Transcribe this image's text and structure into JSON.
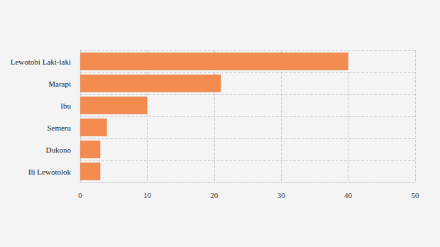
{
  "chart_data": {
    "type": "bar",
    "orientation": "horizontal",
    "categories": [
      "Lewotobi Laki-laki",
      "Marapi",
      "Ibu",
      "Semeru",
      "Dukono",
      "Ili Lewotolok"
    ],
    "values": [
      40,
      21,
      10,
      4,
      3,
      3
    ],
    "color": "#f58c4f",
    "xlim": [
      0,
      50
    ],
    "xticks": [
      0,
      10,
      20,
      30,
      40,
      50
    ],
    "grid": true
  }
}
